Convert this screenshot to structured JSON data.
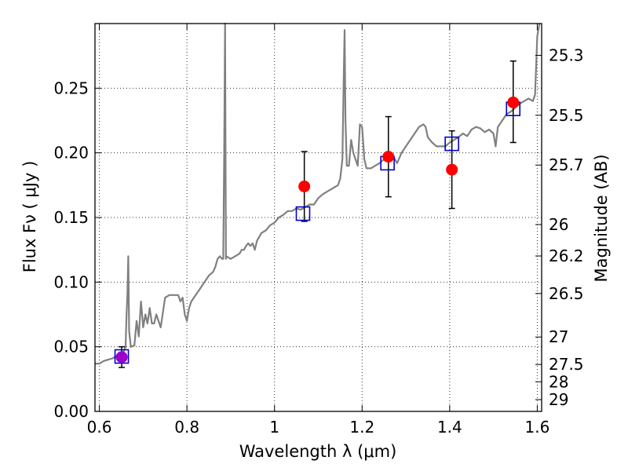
{
  "chart_data": {
    "type": "scatter",
    "xlabel": "Wavelength  λ (μm)",
    "ylabel": "Flux  Fν ( μJy )",
    "ylabel_right": "Magnitude (AB)",
    "xlim": [
      0.59,
      1.61
    ],
    "ylim": [
      0.0,
      0.3
    ],
    "grid": true,
    "x_ticks": [
      {
        "value": 0.6,
        "label": "0.6"
      },
      {
        "value": 0.8,
        "label": "0.8"
      },
      {
        "value": 1.0,
        "label": "1"
      },
      {
        "value": 1.2,
        "label": "1.2"
      },
      {
        "value": 1.4,
        "label": "1.4"
      },
      {
        "value": 1.6,
        "label": "1.6"
      }
    ],
    "y_ticks": [
      {
        "value": 0.0,
        "label": "0.00"
      },
      {
        "value": 0.05,
        "label": "0.05"
      },
      {
        "value": 0.1,
        "label": "0.10"
      },
      {
        "value": 0.15,
        "label": "0.15"
      },
      {
        "value": 0.2,
        "label": "0.20"
      },
      {
        "value": 0.25,
        "label": "0.25"
      }
    ],
    "y_ticks_right": [
      {
        "value": 25.3,
        "label": "25.3"
      },
      {
        "value": 25.5,
        "label": "25.5"
      },
      {
        "value": 25.7,
        "label": "25.7"
      },
      {
        "value": 26.0,
        "label": "26"
      },
      {
        "value": 26.2,
        "label": "26.2"
      },
      {
        "value": 26.5,
        "label": "26.5"
      },
      {
        "value": 27.0,
        "label": "27"
      },
      {
        "value": 27.5,
        "label": "27.5"
      },
      {
        "value": 28.0,
        "label": "28"
      },
      {
        "value": 29.0,
        "label": "29"
      }
    ],
    "series": [
      {
        "kind": "line",
        "color": "#808080",
        "points": [
          [
            0.59,
            0.037
          ],
          [
            0.6,
            0.037
          ],
          [
            0.61,
            0.039
          ],
          [
            0.62,
            0.04
          ],
          [
            0.63,
            0.041
          ],
          [
            0.64,
            0.043
          ],
          [
            0.65,
            0.044
          ],
          [
            0.655,
            0.046
          ],
          [
            0.66,
            0.05
          ],
          [
            0.662,
            0.075
          ],
          [
            0.664,
            0.09
          ],
          [
            0.666,
            0.12
          ],
          [
            0.668,
            0.062
          ],
          [
            0.672,
            0.05
          ],
          [
            0.68,
            0.051
          ],
          [
            0.685,
            0.07
          ],
          [
            0.69,
            0.058
          ],
          [
            0.695,
            0.085
          ],
          [
            0.7,
            0.065
          ],
          [
            0.705,
            0.075
          ],
          [
            0.71,
            0.068
          ],
          [
            0.715,
            0.08
          ],
          [
            0.72,
            0.068
          ],
          [
            0.725,
            0.068
          ],
          [
            0.73,
            0.075
          ],
          [
            0.74,
            0.065
          ],
          [
            0.75,
            0.088
          ],
          [
            0.76,
            0.09
          ],
          [
            0.77,
            0.09
          ],
          [
            0.78,
            0.09
          ],
          [
            0.785,
            0.085
          ],
          [
            0.79,
            0.088
          ],
          [
            0.795,
            0.075
          ],
          [
            0.8,
            0.07
          ],
          [
            0.805,
            0.08
          ],
          [
            0.81,
            0.085
          ],
          [
            0.82,
            0.09
          ],
          [
            0.83,
            0.095
          ],
          [
            0.84,
            0.1
          ],
          [
            0.85,
            0.105
          ],
          [
            0.86,
            0.108
          ],
          [
            0.865,
            0.112
          ],
          [
            0.87,
            0.118
          ],
          [
            0.875,
            0.12
          ],
          [
            0.88,
            0.118
          ],
          [
            0.883,
            0.118
          ],
          [
            0.885,
            0.2
          ],
          [
            0.887,
            0.3
          ],
          [
            0.889,
            0.118
          ],
          [
            0.89,
            0.12
          ],
          [
            0.9,
            0.118
          ],
          [
            0.91,
            0.12
          ],
          [
            0.92,
            0.122
          ],
          [
            0.925,
            0.125
          ],
          [
            0.93,
            0.125
          ],
          [
            0.935,
            0.128
          ],
          [
            0.94,
            0.13
          ],
          [
            0.945,
            0.128
          ],
          [
            0.95,
            0.13
          ],
          [
            0.955,
            0.125
          ],
          [
            0.96,
            0.132
          ],
          [
            0.97,
            0.138
          ],
          [
            0.98,
            0.14
          ],
          [
            0.99,
            0.144
          ],
          [
            1.0,
            0.146
          ],
          [
            1.01,
            0.15
          ],
          [
            1.02,
            0.152
          ],
          [
            1.03,
            0.155
          ],
          [
            1.04,
            0.155
          ],
          [
            1.05,
            0.157
          ],
          [
            1.06,
            0.156
          ],
          [
            1.07,
            0.158
          ],
          [
            1.08,
            0.16
          ],
          [
            1.09,
            0.16
          ],
          [
            1.1,
            0.165
          ],
          [
            1.11,
            0.168
          ],
          [
            1.12,
            0.17
          ],
          [
            1.13,
            0.172
          ],
          [
            1.14,
            0.174
          ],
          [
            1.145,
            0.175
          ],
          [
            1.15,
            0.18
          ],
          [
            1.155,
            0.195
          ],
          [
            1.158,
            0.26
          ],
          [
            1.16,
            0.295
          ],
          [
            1.162,
            0.225
          ],
          [
            1.165,
            0.19
          ],
          [
            1.17,
            0.19
          ],
          [
            1.175,
            0.21
          ],
          [
            1.18,
            0.2
          ],
          [
            1.185,
            0.195
          ],
          [
            1.19,
            0.19
          ],
          [
            1.195,
            0.222
          ],
          [
            1.2,
            0.22
          ],
          [
            1.205,
            0.195
          ],
          [
            1.21,
            0.188
          ],
          [
            1.22,
            0.188
          ],
          [
            1.23,
            0.19
          ],
          [
            1.24,
            0.192
          ],
          [
            1.25,
            0.195
          ],
          [
            1.26,
            0.195
          ],
          [
            1.27,
            0.198
          ],
          [
            1.28,
            0.192
          ],
          [
            1.29,
            0.2
          ],
          [
            1.3,
            0.205
          ],
          [
            1.31,
            0.21
          ],
          [
            1.32,
            0.215
          ],
          [
            1.33,
            0.22
          ],
          [
            1.34,
            0.222
          ],
          [
            1.345,
            0.22
          ],
          [
            1.35,
            0.212
          ],
          [
            1.36,
            0.208
          ],
          [
            1.37,
            0.205
          ],
          [
            1.38,
            0.205
          ],
          [
            1.39,
            0.205
          ],
          [
            1.4,
            0.208
          ],
          [
            1.41,
            0.21
          ],
          [
            1.42,
            0.212
          ],
          [
            1.43,
            0.215
          ],
          [
            1.44,
            0.213
          ],
          [
            1.45,
            0.218
          ],
          [
            1.46,
            0.22
          ],
          [
            1.47,
            0.219
          ],
          [
            1.48,
            0.216
          ],
          [
            1.49,
            0.218
          ],
          [
            1.5,
            0.215
          ],
          [
            1.505,
            0.205
          ],
          [
            1.51,
            0.22
          ],
          [
            1.52,
            0.225
          ],
          [
            1.53,
            0.23
          ],
          [
            1.54,
            0.232
          ],
          [
            1.55,
            0.235
          ],
          [
            1.56,
            0.238
          ],
          [
            1.57,
            0.24
          ],
          [
            1.58,
            0.242
          ],
          [
            1.59,
            0.24
          ],
          [
            1.595,
            0.245
          ],
          [
            1.6,
            0.29
          ],
          [
            1.605,
            0.3
          ]
        ]
      },
      {
        "kind": "open-squares",
        "color": "#0000cc",
        "points": [
          [
            0.651,
            0.0425
          ],
          [
            1.065,
            0.153
          ],
          [
            1.258,
            0.192
          ],
          [
            1.405,
            0.207
          ],
          [
            1.545,
            0.234
          ]
        ]
      },
      {
        "kind": "filled-circles",
        "color": "#ff0000",
        "highlight_color": "#9900cc",
        "points": [
          [
            0.651,
            0.042
          ],
          [
            1.068,
            0.174
          ],
          [
            1.26,
            0.197
          ],
          [
            1.405,
            0.187
          ],
          [
            1.545,
            0.239
          ]
        ],
        "errors": [
          [
            0.034,
            0.05
          ],
          [
            0.147,
            0.201
          ],
          [
            0.166,
            0.228
          ],
          [
            0.157,
            0.217
          ],
          [
            0.208,
            0.271
          ]
        ]
      }
    ]
  }
}
